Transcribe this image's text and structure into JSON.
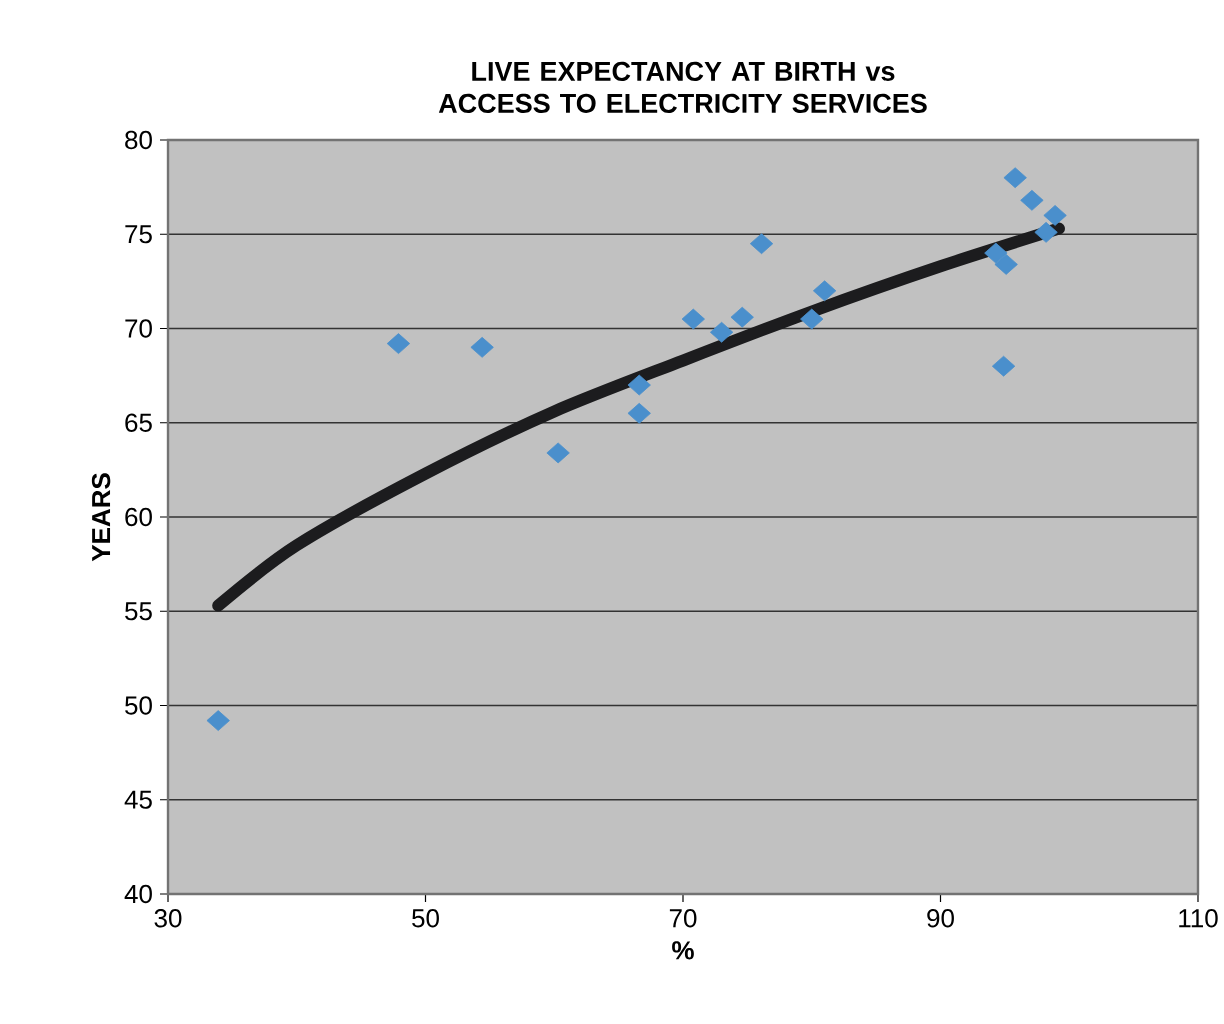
{
  "chart_data": {
    "type": "scatter",
    "title": "LIVE EXPECTANCY AT BIRTH vs ACCESS TO ELECTRICITY SERVICES",
    "xlabel": "%",
    "ylabel": "YEARS",
    "xlim": [
      30,
      110
    ],
    "xticks": [
      30,
      50,
      70,
      90,
      110
    ],
    "ylim": [
      40,
      80
    ],
    "yticks": [
      40,
      45,
      50,
      55,
      60,
      65,
      70,
      75,
      80
    ],
    "grid": "y",
    "series": [
      {
        "marker": "diamond",
        "color": "#4a8fcc",
        "x": [
          33.9,
          47.9,
          54.4,
          60.3,
          66.6,
          66.6,
          70.8,
          73.0,
          74.6,
          76.1,
          80.0,
          81.0,
          94.3,
          95.1,
          94.9,
          95.8,
          97.1,
          98.2,
          98.9
        ],
        "values": [
          49.2,
          69.2,
          69.0,
          63.4,
          67.0,
          65.5,
          70.5,
          69.8,
          70.6,
          74.5,
          70.5,
          72.0,
          74.0,
          73.4,
          68.0,
          78.0,
          76.8,
          75.1,
          76.0
        ]
      },
      {
        "type": "line",
        "marker": "none",
        "color": "#1c1c1e",
        "x": [
          33.9,
          40,
          50,
          60,
          70,
          80,
          90,
          99.2
        ],
        "values": [
          55.3,
          58.5,
          62.3,
          65.6,
          68.3,
          70.9,
          73.3,
          75.3
        ]
      }
    ]
  }
}
